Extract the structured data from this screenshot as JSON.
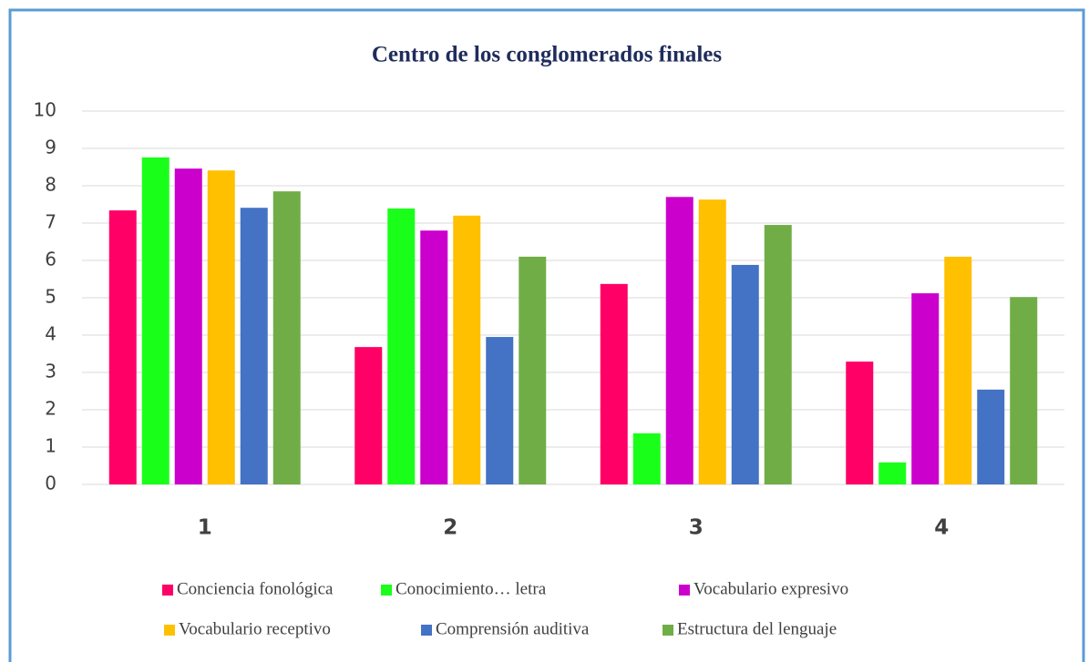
{
  "chart_data": {
    "type": "bar",
    "title": "Centro de los conglomerados finales",
    "categories": [
      "1",
      "2",
      "3",
      "4"
    ],
    "series": [
      {
        "name": "Conciencia fonológica",
        "color": "#ff0066",
        "values": [
          7.34,
          3.68,
          5.37,
          3.29
        ]
      },
      {
        "name": "Conocimiento… letra",
        "color": "#1aff1a",
        "values": [
          8.76,
          7.39,
          1.37,
          0.59
        ]
      },
      {
        "name": "Vocabulario expresivo",
        "color": "#cc00cc",
        "values": [
          8.46,
          6.8,
          7.7,
          5.12
        ]
      },
      {
        "name": " Vocabulario receptivo",
        "color": "#ffc000",
        "values": [
          8.41,
          7.2,
          7.63,
          6.1
        ]
      },
      {
        "name": "Comprensión auditiva",
        "color": "#4472c4",
        "values": [
          7.41,
          3.95,
          5.88,
          2.54
        ]
      },
      {
        "name": "Estructura del lenguaje",
        "color": "#70ad47",
        "values": [
          7.85,
          6.1,
          6.95,
          5.02
        ]
      }
    ],
    "ylim": [
      0,
      10
    ],
    "yticks": [
      0,
      1,
      2,
      3,
      4,
      5,
      6,
      7,
      8,
      9,
      10
    ],
    "grid": true,
    "legend": "bottom"
  }
}
